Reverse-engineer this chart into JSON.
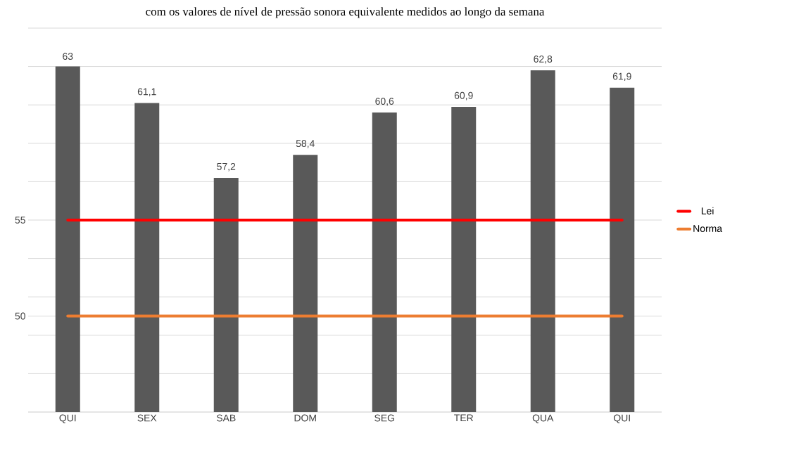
{
  "chart_data": {
    "type": "bar",
    "title": "com os valores de nível de pressão sonora equivalente medidos ao longo da semana",
    "categories": [
      "QUI",
      "SEX",
      "SAB",
      "DOM",
      "SEG",
      "TER",
      "QUA",
      "QUI"
    ],
    "series": [
      {
        "color": "#595959",
        "values": [
          63,
          61.1,
          57.2,
          58.4,
          60.6,
          60.9,
          62.8,
          61.9
        ],
        "value_labels": [
          "63",
          "61,1",
          "57,2",
          "58,4",
          "60,6",
          "60,9",
          "62,8",
          "61,9"
        ]
      },
      {
        "type": "line",
        "name": "Lei",
        "color": "#ff0000",
        "values": [
          55,
          55,
          55,
          55,
          55,
          55,
          55,
          55
        ]
      },
      {
        "type": "line",
        "name": "Norma",
        "color": "#ed7d31",
        "values": [
          50,
          50,
          50,
          50,
          50,
          50,
          50,
          50
        ]
      }
    ],
    "ylim": [
      45,
      65
    ],
    "yticks": [
      {
        "value": 45,
        "label": null
      },
      {
        "value": 47,
        "label": null
      },
      {
        "value": 49,
        "label": null
      },
      {
        "value": 50,
        "label": "50"
      },
      {
        "value": 51,
        "label": null
      },
      {
        "value": 53,
        "label": null
      },
      {
        "value": 55,
        "label": "55"
      },
      {
        "value": 57,
        "label": null
      },
      {
        "value": 59,
        "label": null
      },
      {
        "value": 61,
        "label": null
      },
      {
        "value": 63,
        "label": null
      },
      {
        "value": 65,
        "label": null
      }
    ],
    "grid": "y",
    "legend": "right"
  }
}
